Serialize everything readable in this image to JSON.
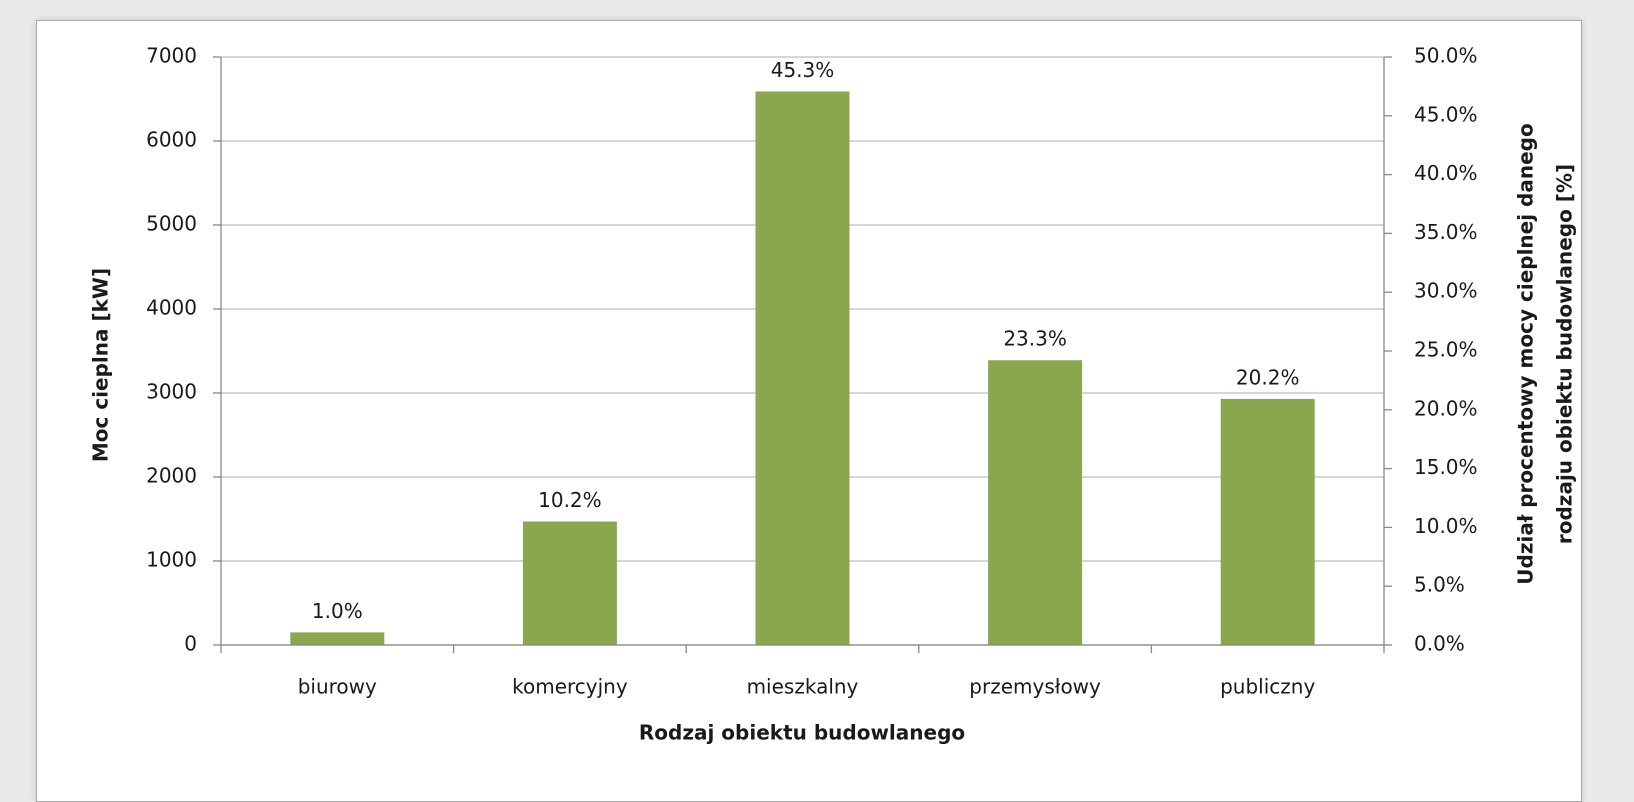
{
  "chart_data": {
    "type": "bar",
    "categories": [
      "biurowy",
      "komercyjny",
      "mieszkalny",
      "przemysłowy",
      "publiczny"
    ],
    "values": [
      150,
      1470,
      6590,
      3390,
      2930
    ],
    "color": "#8aa64f",
    "data_labels": {
      "values": [
        1.0,
        10.2,
        45.3,
        23.3,
        20.2
      ],
      "value_labels": [
        "1.0%",
        "10.2%",
        "45.3%",
        "23.3%",
        "20.2%"
      ]
    },
    "ylim": [
      0,
      7000
    ],
    "yticks": [
      0,
      1000,
      2000,
      3000,
      4000,
      5000,
      6000,
      7000
    ],
    "y2lim": [
      0,
      50
    ],
    "y2ticks": [
      {
        "value": 0,
        "label": "0.0%"
      },
      {
        "value": 5,
        "label": "5.0%"
      },
      {
        "value": 10,
        "label": "10.0%"
      },
      {
        "value": 15,
        "label": "15.0%"
      },
      {
        "value": 20,
        "label": "20.0%"
      },
      {
        "value": 25,
        "label": "25.0%"
      },
      {
        "value": 30,
        "label": "30.0%"
      },
      {
        "value": 35,
        "label": "35.0%"
      },
      {
        "value": 40,
        "label": "40.0%"
      },
      {
        "value": 45,
        "label": "45.0%"
      },
      {
        "value": 50,
        "label": "50.0%"
      }
    ],
    "ylabel": "Moc cieplna [kW]",
    "y2label": [
      "Udział procentowy mocy cieplnej danego",
      "rodzaju obiektu budowlanego [%]"
    ],
    "xlabel": "Rodzaj obiektu budowlanego",
    "grid": true
  }
}
